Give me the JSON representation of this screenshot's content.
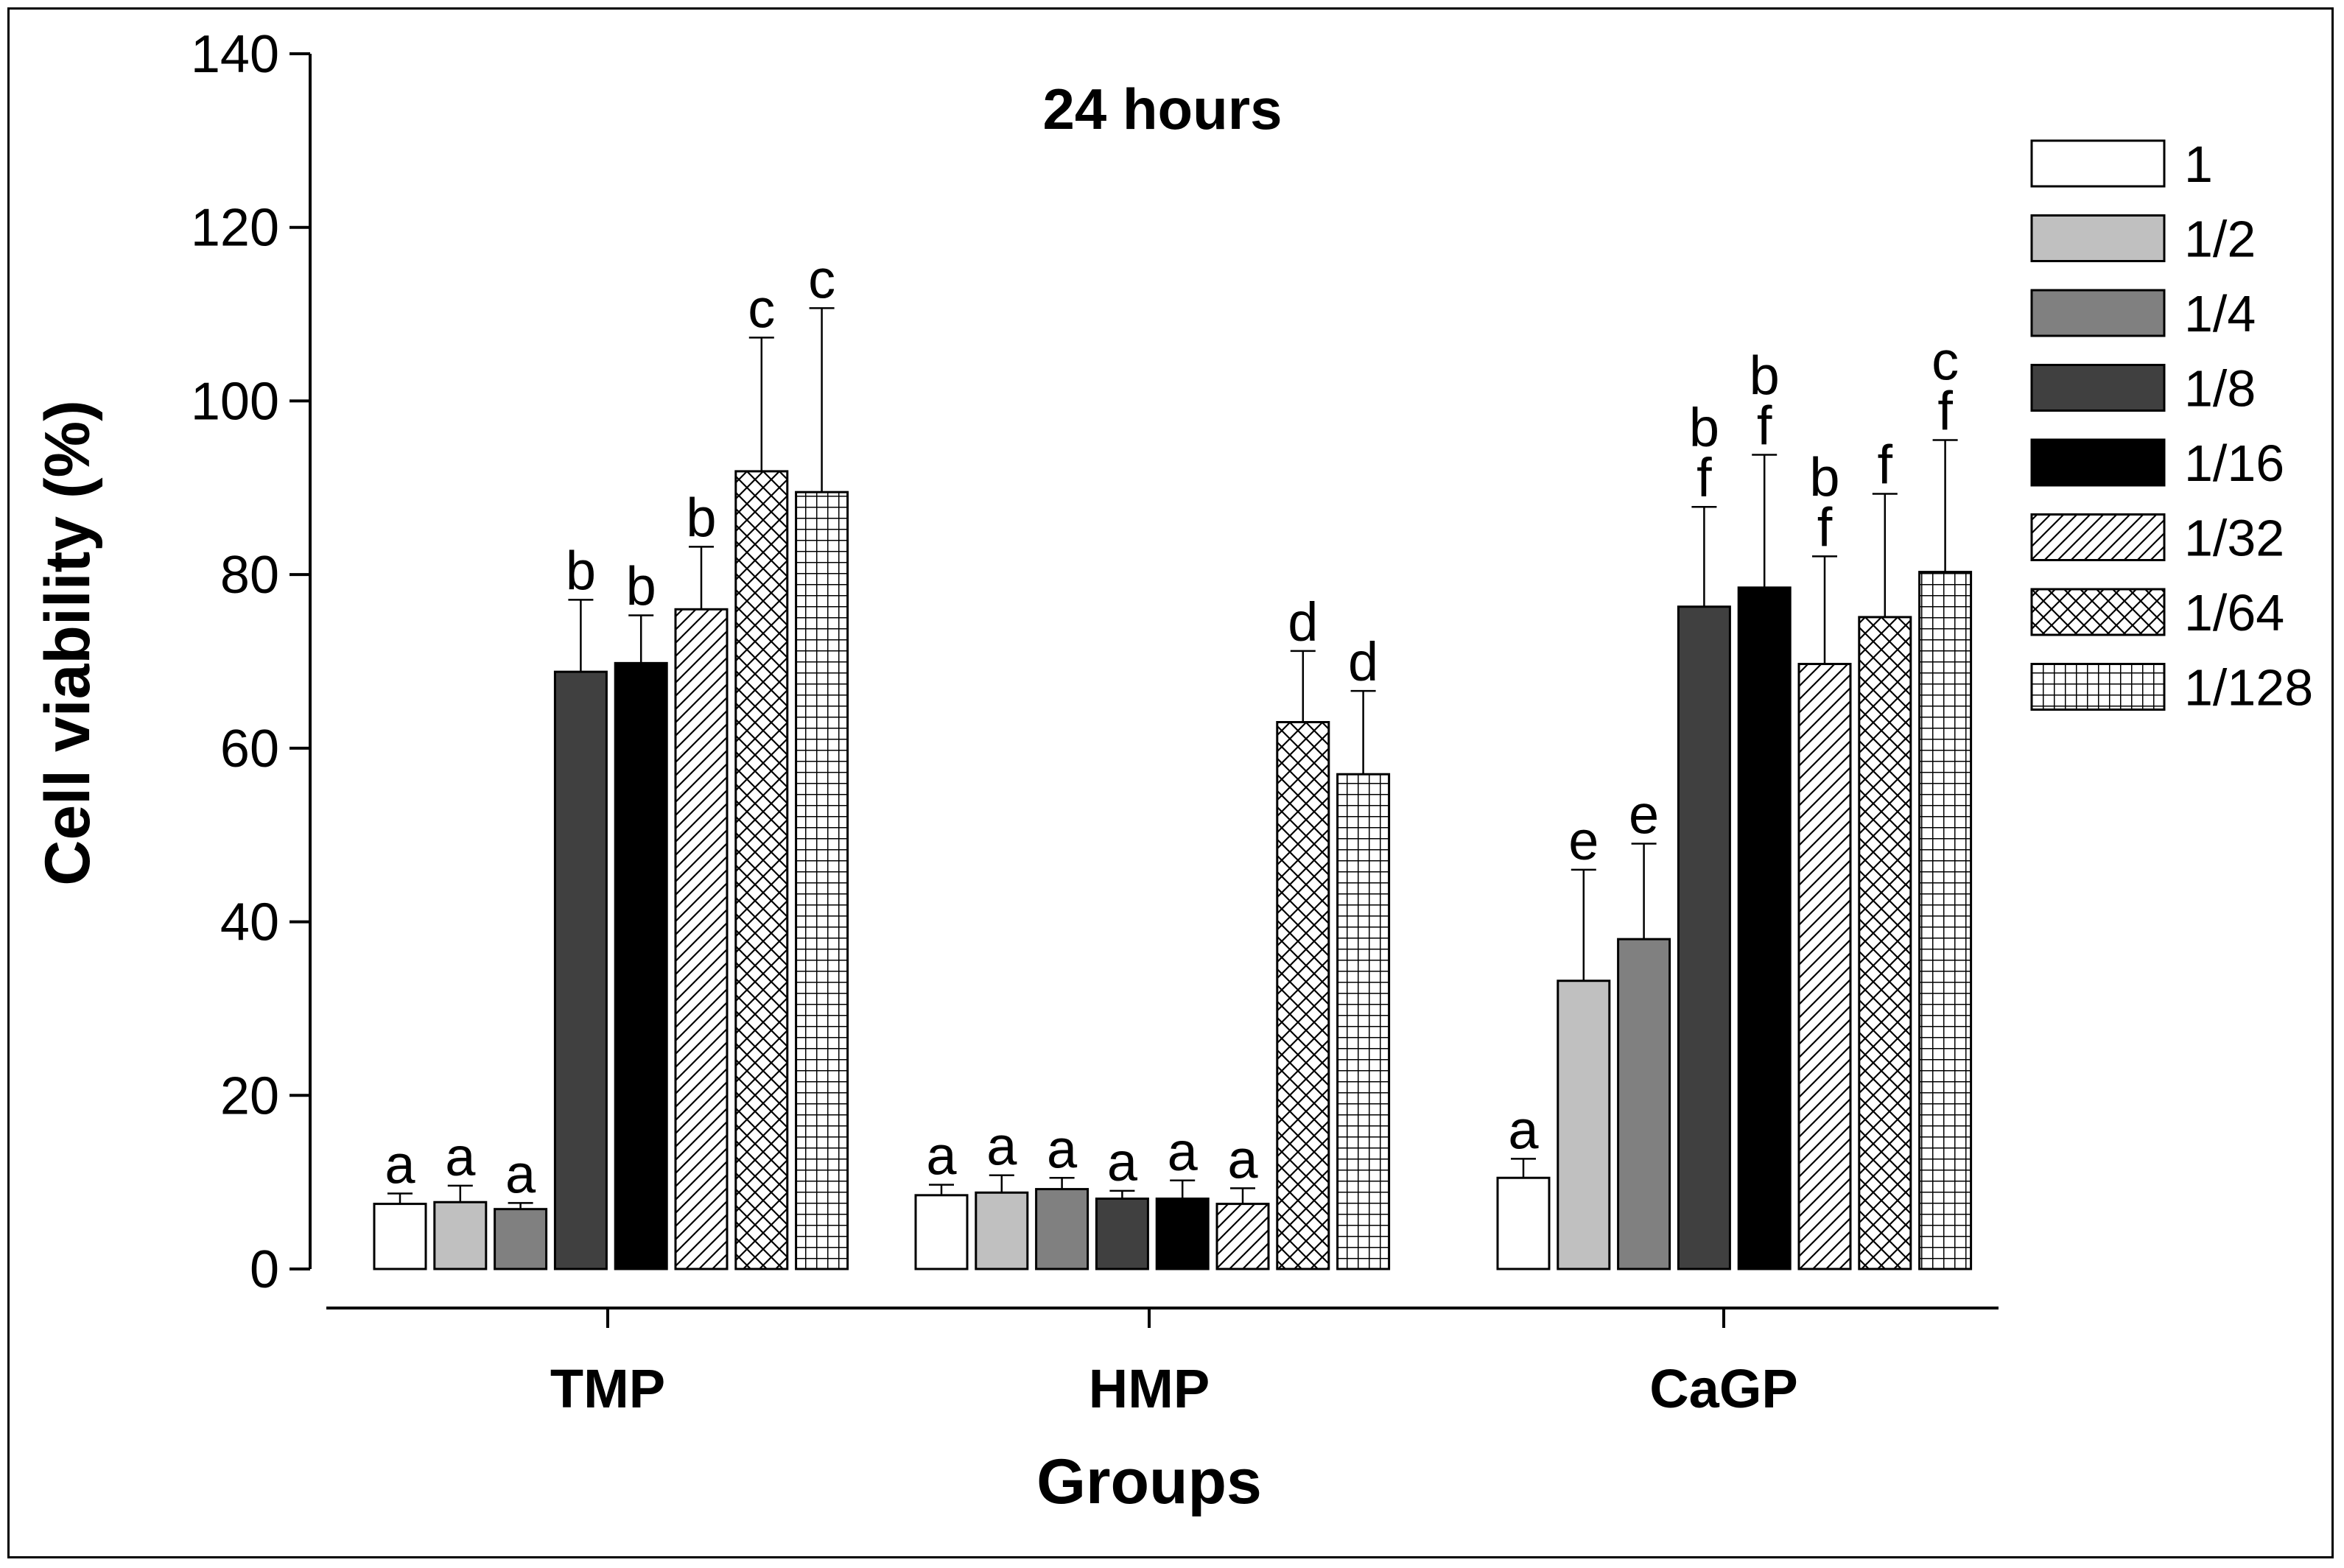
{
  "chart_data": {
    "type": "bar",
    "title": "24 hours",
    "xlabel": "Groups",
    "ylabel": "Cell viability (%)",
    "ylim": [
      0,
      140
    ],
    "yticks": [
      0,
      20,
      40,
      60,
      80,
      100,
      120,
      140
    ],
    "categories": [
      "TMP",
      "HMP",
      "CaGP"
    ],
    "legend_position": "top-right",
    "series": [
      {
        "name": "1",
        "pattern": "white",
        "values": [
          7.5,
          8.5,
          10.5
        ],
        "errors": [
          1.2,
          1.2,
          2.2
        ],
        "labels": [
          [
            "a"
          ],
          [
            "a"
          ],
          [
            "a"
          ]
        ]
      },
      {
        "name": "1/2",
        "pattern": "light-gray",
        "values": [
          7.7,
          8.8,
          33.2
        ],
        "errors": [
          1.9,
          2.0,
          12.8
        ],
        "labels": [
          [
            "a"
          ],
          [
            "a"
          ],
          [
            "e"
          ]
        ]
      },
      {
        "name": "1/4",
        "pattern": "gray",
        "values": [
          6.9,
          9.2,
          38.0
        ],
        "errors": [
          0.7,
          1.3,
          11.0
        ],
        "labels": [
          [
            "a"
          ],
          [
            "a"
          ],
          [
            "e"
          ]
        ]
      },
      {
        "name": "1/8",
        "pattern": "dark-gray",
        "values": [
          68.8,
          8.1,
          76.3
        ],
        "errors": [
          8.3,
          0.9,
          11.5
        ],
        "labels": [
          [
            "b"
          ],
          [
            "a"
          ],
          [
            "b",
            "f"
          ]
        ]
      },
      {
        "name": "1/16",
        "pattern": "black",
        "values": [
          69.8,
          8.1,
          78.5
        ],
        "errors": [
          5.5,
          2.1,
          15.3
        ],
        "labels": [
          [
            "b"
          ],
          [
            "a"
          ],
          [
            "b",
            "f"
          ]
        ]
      },
      {
        "name": "1/32",
        "pattern": "diagonal",
        "values": [
          76.0,
          7.5,
          69.7
        ],
        "errors": [
          7.2,
          1.8,
          12.4
        ],
        "labels": [
          [
            "b"
          ],
          [
            "a"
          ],
          [
            "b",
            "f"
          ]
        ]
      },
      {
        "name": "1/64",
        "pattern": "crosshatch",
        "values": [
          91.9,
          63.0,
          75.1
        ],
        "errors": [
          15.4,
          8.2,
          14.2
        ],
        "labels": [
          [
            "c"
          ],
          [
            "d"
          ],
          [
            "f"
          ]
        ]
      },
      {
        "name": "1/128",
        "pattern": "grid",
        "values": [
          89.5,
          57.0,
          80.3
        ],
        "errors": [
          21.2,
          9.6,
          15.2
        ],
        "labels": [
          [
            "c"
          ],
          [
            "d"
          ],
          [
            "c",
            "f"
          ]
        ]
      }
    ]
  }
}
